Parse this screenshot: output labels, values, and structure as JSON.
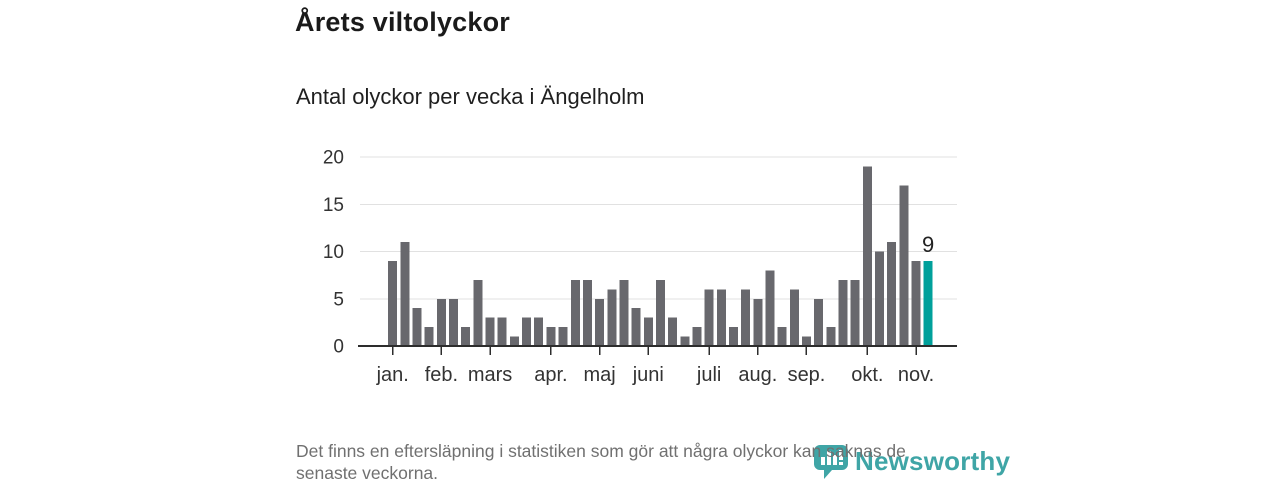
{
  "chart_data": {
    "type": "bar",
    "title": "Årets viltolyckor",
    "subtitle": "Antal olyckor per vecka i Ängelholm",
    "values": [
      9,
      11,
      4,
      2,
      5,
      5,
      2,
      7,
      3,
      3,
      1,
      3,
      3,
      2,
      2,
      7,
      7,
      5,
      6,
      7,
      4,
      3,
      7,
      3,
      1,
      2,
      6,
      6,
      2,
      6,
      5,
      8,
      2,
      6,
      1,
      5,
      2,
      7,
      7,
      19,
      10,
      11,
      17,
      9,
      9
    ],
    "ylim": [
      0,
      20
    ],
    "yticks": [
      0,
      5,
      10,
      15,
      20
    ],
    "grid": true,
    "legend": false,
    "month_ticks": [
      {
        "label": "jan.",
        "week_index": 0
      },
      {
        "label": "feb.",
        "week_index": 4
      },
      {
        "label": "mars",
        "week_index": 8
      },
      {
        "label": "apr.",
        "week_index": 13
      },
      {
        "label": "maj",
        "week_index": 17
      },
      {
        "label": "juni",
        "week_index": 21
      },
      {
        "label": "juli",
        "week_index": 26
      },
      {
        "label": "aug.",
        "week_index": 30
      },
      {
        "label": "sep.",
        "week_index": 34
      },
      {
        "label": "okt.",
        "week_index": 39
      },
      {
        "label": "nov.",
        "week_index": 43
      }
    ],
    "highlight_index": 44,
    "annotation": {
      "text": "9",
      "index": 44
    },
    "colors": {
      "bar": "#68686d",
      "highlight": "#00a09b",
      "grid": "#e1e1e1",
      "axis": "#2d2d2d",
      "label": "#333333",
      "annotation": "#222222"
    }
  },
  "footer": {
    "note_line1": "Det finns en eftersläpning i statistiken som gör att några olyckor kan saknas de",
    "note_line2": "senaste veckorna."
  },
  "logo": {
    "name": "Newsworthy",
    "color": "#3fa5a6"
  }
}
